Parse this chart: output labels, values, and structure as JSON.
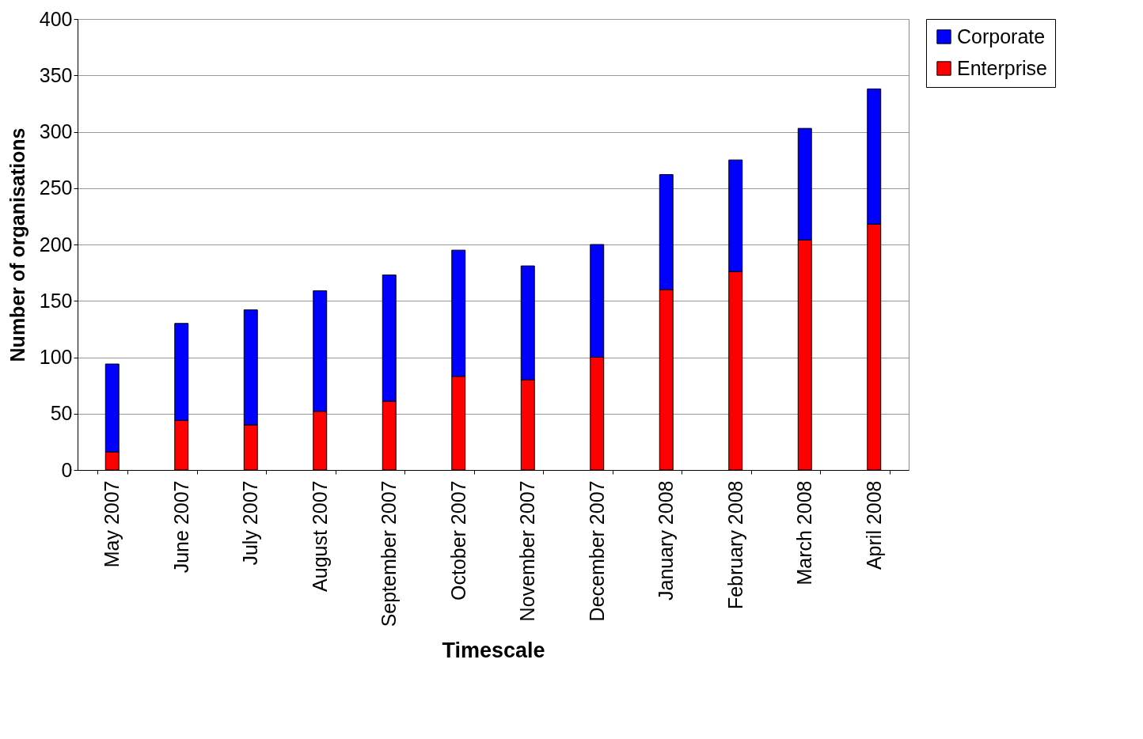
{
  "chart_data": {
    "type": "bar",
    "stacked": true,
    "xlabel": "Timescale",
    "ylabel": "Number of organisations",
    "categories": [
      "May 2007",
      "June 2007",
      "July 2007",
      "August 2007",
      "September 2007",
      "October 2007",
      "November 2007",
      "December 2007",
      "January 2008",
      "February 2008",
      "March 2008",
      "April 2008"
    ],
    "series": [
      {
        "name": "Enterprise",
        "color": "#ff0000",
        "values": [
          16,
          44,
          40,
          52,
          61,
          83,
          80,
          100,
          160,
          176,
          204,
          218
        ]
      },
      {
        "name": "Corporate",
        "color": "#0000ff",
        "values": [
          78,
          86,
          102,
          107,
          112,
          112,
          101,
          100,
          102,
          99,
          99,
          120
        ]
      }
    ],
    "ylim": [
      0,
      400
    ],
    "yticks": [
      0,
      50,
      100,
      150,
      200,
      250,
      300,
      350,
      400
    ],
    "grid": "y",
    "legend": "right"
  }
}
